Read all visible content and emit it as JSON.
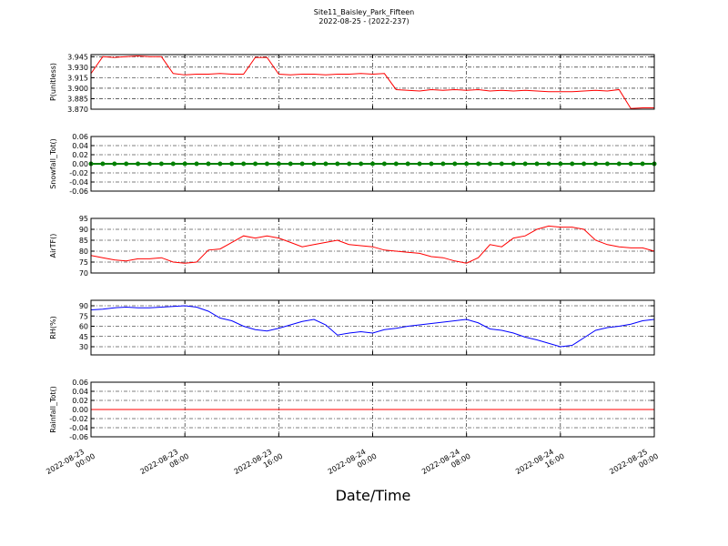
{
  "chart_data": [
    {
      "type": "line",
      "title": "Site11_Baisley_Park_Fifteen",
      "subtitle": "2022-08-25 - (2022-237)",
      "ylabel": "P(unitless)",
      "x": [
        "2022-08-23 00:00",
        "2022-08-23 01:00",
        "2022-08-23 02:00",
        "2022-08-23 03:00",
        "2022-08-23 04:00",
        "2022-08-23 05:00",
        "2022-08-23 06:00",
        "2022-08-23 07:00",
        "2022-08-23 08:00",
        "2022-08-23 09:00",
        "2022-08-23 10:00",
        "2022-08-23 11:00",
        "2022-08-23 12:00",
        "2022-08-23 13:00",
        "2022-08-23 14:00",
        "2022-08-23 15:00",
        "2022-08-23 16:00",
        "2022-08-23 17:00",
        "2022-08-23 18:00",
        "2022-08-23 19:00",
        "2022-08-23 20:00",
        "2022-08-23 21:00",
        "2022-08-23 22:00",
        "2022-08-23 23:00",
        "2022-08-24 00:00",
        "2022-08-24 01:00",
        "2022-08-24 02:00",
        "2022-08-24 03:00",
        "2022-08-24 04:00",
        "2022-08-24 05:00",
        "2022-08-24 06:00",
        "2022-08-24 07:00",
        "2022-08-24 08:00",
        "2022-08-24 09:00",
        "2022-08-24 10:00",
        "2022-08-24 11:00",
        "2022-08-24 12:00",
        "2022-08-24 13:00",
        "2022-08-24 14:00",
        "2022-08-24 15:00",
        "2022-08-24 16:00",
        "2022-08-24 17:00",
        "2022-08-24 18:00",
        "2022-08-24 19:00",
        "2022-08-24 20:00",
        "2022-08-24 21:00",
        "2022-08-24 22:00",
        "2022-08-24 23:00",
        "2022-08-25 00:00"
      ],
      "series": [
        {
          "name": "P",
          "color": "#ff0000",
          "values": [
            3.921,
            3.945,
            3.944,
            3.945,
            3.946,
            3.945,
            3.945,
            3.921,
            3.919,
            3.92,
            3.92,
            3.921,
            3.92,
            3.92,
            3.944,
            3.944,
            3.92,
            3.919,
            3.92,
            3.92,
            3.919,
            3.92,
            3.92,
            3.921,
            3.92,
            3.921,
            3.898,
            3.897,
            3.896,
            3.898,
            3.897,
            3.898,
            3.897,
            3.898,
            3.896,
            3.897,
            3.896,
            3.897,
            3.896,
            3.895,
            3.895,
            3.895,
            3.896,
            3.897,
            3.896,
            3.898,
            3.871,
            3.872,
            3.872
          ]
        }
      ],
      "xlim": [
        "2022-08-23 00:00",
        "2022-08-25 00:00"
      ],
      "ylim": [
        3.87,
        3.948
      ],
      "yticks": [
        {
          "value": 3.87,
          "label": "3.870"
        },
        3.885,
        {
          "value": 3.9,
          "label": "3.900"
        },
        3.915,
        {
          "value": 3.93,
          "label": "3.930"
        },
        3.945
      ],
      "grid": true
    },
    {
      "type": "line",
      "ylabel": "Snowfall_Tot()",
      "markers": true,
      "x": [
        "2022-08-23 00:00",
        "2022-08-23 01:00",
        "2022-08-23 02:00",
        "2022-08-23 03:00",
        "2022-08-23 04:00",
        "2022-08-23 05:00",
        "2022-08-23 06:00",
        "2022-08-23 07:00",
        "2022-08-23 08:00",
        "2022-08-23 09:00",
        "2022-08-23 10:00",
        "2022-08-23 11:00",
        "2022-08-23 12:00",
        "2022-08-23 13:00",
        "2022-08-23 14:00",
        "2022-08-23 15:00",
        "2022-08-23 16:00",
        "2022-08-23 17:00",
        "2022-08-23 18:00",
        "2022-08-23 19:00",
        "2022-08-23 20:00",
        "2022-08-23 21:00",
        "2022-08-23 22:00",
        "2022-08-23 23:00",
        "2022-08-24 00:00",
        "2022-08-24 01:00",
        "2022-08-24 02:00",
        "2022-08-24 03:00",
        "2022-08-24 04:00",
        "2022-08-24 05:00",
        "2022-08-24 06:00",
        "2022-08-24 07:00",
        "2022-08-24 08:00",
        "2022-08-24 09:00",
        "2022-08-24 10:00",
        "2022-08-24 11:00",
        "2022-08-24 12:00",
        "2022-08-24 13:00",
        "2022-08-24 14:00",
        "2022-08-24 15:00",
        "2022-08-24 16:00",
        "2022-08-24 17:00",
        "2022-08-24 18:00",
        "2022-08-24 19:00",
        "2022-08-24 20:00",
        "2022-08-24 21:00",
        "2022-08-24 22:00",
        "2022-08-24 23:00",
        "2022-08-25 00:00"
      ],
      "series": [
        {
          "name": "Snowfall_Tot",
          "color": "#008000",
          "values": [
            0,
            0,
            0,
            0,
            0,
            0,
            0,
            0,
            0,
            0,
            0,
            0,
            0,
            0,
            0,
            0,
            0,
            0,
            0,
            0,
            0,
            0,
            0,
            0,
            0,
            0,
            0,
            0,
            0,
            0,
            0,
            0,
            0,
            0,
            0,
            0,
            0,
            0,
            0,
            0,
            0,
            0,
            0,
            0,
            0,
            0,
            0,
            0,
            0
          ]
        }
      ],
      "xlim": [
        "2022-08-23 00:00",
        "2022-08-25 00:00"
      ],
      "ylim": [
        -0.06,
        0.06
      ],
      "yticks": [
        -0.06,
        -0.04,
        -0.02,
        {
          "value": 0,
          "label": "0.00"
        },
        0.02,
        0.04,
        0.06
      ],
      "grid": true
    },
    {
      "type": "line",
      "ylabel": "AirTF()",
      "x": [
        "2022-08-23 00:00",
        "2022-08-23 01:00",
        "2022-08-23 02:00",
        "2022-08-23 03:00",
        "2022-08-23 04:00",
        "2022-08-23 05:00",
        "2022-08-23 06:00",
        "2022-08-23 07:00",
        "2022-08-23 08:00",
        "2022-08-23 09:00",
        "2022-08-23 10:00",
        "2022-08-23 11:00",
        "2022-08-23 12:00",
        "2022-08-23 13:00",
        "2022-08-23 14:00",
        "2022-08-23 15:00",
        "2022-08-23 16:00",
        "2022-08-23 17:00",
        "2022-08-23 18:00",
        "2022-08-23 19:00",
        "2022-08-23 20:00",
        "2022-08-23 21:00",
        "2022-08-23 22:00",
        "2022-08-23 23:00",
        "2022-08-24 00:00",
        "2022-08-24 01:00",
        "2022-08-24 02:00",
        "2022-08-24 03:00",
        "2022-08-24 04:00",
        "2022-08-24 05:00",
        "2022-08-24 06:00",
        "2022-08-24 07:00",
        "2022-08-24 08:00",
        "2022-08-24 09:00",
        "2022-08-24 10:00",
        "2022-08-24 11:00",
        "2022-08-24 12:00",
        "2022-08-24 13:00",
        "2022-08-24 14:00",
        "2022-08-24 15:00",
        "2022-08-24 16:00",
        "2022-08-24 17:00",
        "2022-08-24 18:00",
        "2022-08-24 19:00",
        "2022-08-24 20:00",
        "2022-08-24 21:00",
        "2022-08-24 22:00",
        "2022-08-24 23:00",
        "2022-08-25 00:00"
      ],
      "series": [
        {
          "name": "AirT",
          "color": "#ff0000",
          "values": [
            78,
            77,
            76,
            75.5,
            76.5,
            76.5,
            77,
            75,
            74.5,
            75,
            80.5,
            81,
            84,
            87,
            86,
            87,
            86,
            84,
            82,
            83,
            84,
            85,
            83,
            82.5,
            82,
            80.5,
            80,
            79.5,
            79,
            77.5,
            77,
            75.5,
            74.5,
            77,
            83,
            82,
            86,
            87,
            90,
            91.5,
            91,
            91,
            90,
            85,
            83,
            82,
            81.5,
            81.5,
            80
          ]
        }
      ],
      "xlim": [
        "2022-08-23 00:00",
        "2022-08-25 00:00"
      ],
      "ylim": [
        70,
        95
      ],
      "yticks": [
        70,
        75,
        80,
        85,
        90,
        95
      ],
      "grid": true
    },
    {
      "type": "line",
      "ylabel": "RH(%)",
      "x": [
        "2022-08-23 00:00",
        "2022-08-23 01:00",
        "2022-08-23 02:00",
        "2022-08-23 03:00",
        "2022-08-23 04:00",
        "2022-08-23 05:00",
        "2022-08-23 06:00",
        "2022-08-23 07:00",
        "2022-08-23 08:00",
        "2022-08-23 09:00",
        "2022-08-23 10:00",
        "2022-08-23 11:00",
        "2022-08-23 12:00",
        "2022-08-23 13:00",
        "2022-08-23 14:00",
        "2022-08-23 15:00",
        "2022-08-23 16:00",
        "2022-08-23 17:00",
        "2022-08-23 18:00",
        "2022-08-23 19:00",
        "2022-08-23 20:00",
        "2022-08-23 21:00",
        "2022-08-23 22:00",
        "2022-08-23 23:00",
        "2022-08-24 00:00",
        "2022-08-24 01:00",
        "2022-08-24 02:00",
        "2022-08-24 03:00",
        "2022-08-24 04:00",
        "2022-08-24 05:00",
        "2022-08-24 06:00",
        "2022-08-24 07:00",
        "2022-08-24 08:00",
        "2022-08-24 09:00",
        "2022-08-24 10:00",
        "2022-08-24 11:00",
        "2022-08-24 12:00",
        "2022-08-24 13:00",
        "2022-08-24 14:00",
        "2022-08-24 15:00",
        "2022-08-24 16:00",
        "2022-08-24 17:00",
        "2022-08-24 18:00",
        "2022-08-24 19:00",
        "2022-08-24 20:00",
        "2022-08-24 21:00",
        "2022-08-24 22:00",
        "2022-08-24 23:00",
        "2022-08-25 00:00"
      ],
      "series": [
        {
          "name": "RH",
          "color": "#0000ff",
          "values": [
            84,
            85,
            87,
            88,
            87,
            87,
            88,
            89,
            90,
            88,
            82,
            72,
            68,
            60,
            55,
            53,
            57,
            62,
            67,
            70,
            62,
            47,
            50,
            52,
            50,
            55,
            57,
            60,
            62,
            64,
            66,
            68,
            70,
            65,
            56,
            54,
            50,
            44,
            40,
            35,
            30,
            32,
            43,
            54,
            58,
            60,
            63,
            68,
            70
          ]
        }
      ],
      "xlim": [
        "2022-08-23 00:00",
        "2022-08-25 00:00"
      ],
      "ylim": [
        18,
        98
      ],
      "yticks": [
        30,
        45,
        60,
        75,
        90
      ],
      "grid": true
    },
    {
      "type": "line",
      "ylabel": "Rainfall_Tot()",
      "xlabel": "Date/Time",
      "x": [
        "2022-08-23 00:00",
        "2022-08-23 01:00",
        "2022-08-23 02:00",
        "2022-08-23 03:00",
        "2022-08-23 04:00",
        "2022-08-23 05:00",
        "2022-08-23 06:00",
        "2022-08-23 07:00",
        "2022-08-23 08:00",
        "2022-08-23 09:00",
        "2022-08-23 10:00",
        "2022-08-23 11:00",
        "2022-08-23 12:00",
        "2022-08-23 13:00",
        "2022-08-23 14:00",
        "2022-08-23 15:00",
        "2022-08-23 16:00",
        "2022-08-23 17:00",
        "2022-08-23 18:00",
        "2022-08-23 19:00",
        "2022-08-23 20:00",
        "2022-08-23 21:00",
        "2022-08-23 22:00",
        "2022-08-23 23:00",
        "2022-08-24 00:00",
        "2022-08-24 01:00",
        "2022-08-24 02:00",
        "2022-08-24 03:00",
        "2022-08-24 04:00",
        "2022-08-24 05:00",
        "2022-08-24 06:00",
        "2022-08-24 07:00",
        "2022-08-24 08:00",
        "2022-08-24 09:00",
        "2022-08-24 10:00",
        "2022-08-24 11:00",
        "2022-08-24 12:00",
        "2022-08-24 13:00",
        "2022-08-24 14:00",
        "2022-08-24 15:00",
        "2022-08-24 16:00",
        "2022-08-24 17:00",
        "2022-08-24 18:00",
        "2022-08-24 19:00",
        "2022-08-24 20:00",
        "2022-08-24 21:00",
        "2022-08-24 22:00",
        "2022-08-24 23:00",
        "2022-08-25 00:00"
      ],
      "series": [
        {
          "name": "Rainfall_Tot",
          "color": "#ff0000",
          "values": [
            0,
            0,
            0,
            0,
            0,
            0,
            0,
            0,
            0,
            0,
            0,
            0,
            0,
            0,
            0,
            0,
            0,
            0,
            0,
            0,
            0,
            0,
            0,
            0,
            0,
            0,
            0,
            0,
            0,
            0,
            0,
            0,
            0,
            0,
            0,
            0,
            0,
            0,
            0,
            0,
            0,
            0,
            0,
            0,
            0,
            0,
            0,
            0,
            0
          ]
        }
      ],
      "xlim": [
        "2022-08-23 00:00",
        "2022-08-25 00:00"
      ],
      "xticks": [
        "2022-08-23 00:00",
        "2022-08-23 08:00",
        "2022-08-23 16:00",
        "2022-08-24 00:00",
        "2022-08-24 08:00",
        "2022-08-24 16:00",
        "2022-08-25 00:00"
      ],
      "ylim": [
        -0.06,
        0.06
      ],
      "yticks": [
        -0.06,
        -0.04,
        -0.02,
        {
          "value": 0,
          "label": "0.00"
        },
        0.02,
        0.04,
        0.06
      ],
      "grid": true
    }
  ]
}
